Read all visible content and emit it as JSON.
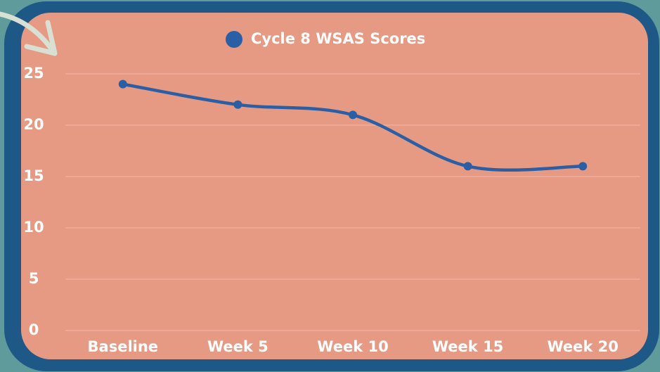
{
  "chart_data": {
    "type": "line",
    "categories": [
      "Baseline",
      "Week 5",
      "Week 10",
      "Week 15",
      "Week 20"
    ],
    "series": [
      {
        "name": "Cycle 8 WSAS Scores",
        "color": "#2a5fa6",
        "values": [
          24,
          22,
          21,
          16,
          16
        ]
      }
    ],
    "ylim": [
      0,
      25
    ],
    "yticks": [
      0,
      5,
      10,
      15,
      20,
      25
    ],
    "grid": true,
    "legend": "top"
  }
}
